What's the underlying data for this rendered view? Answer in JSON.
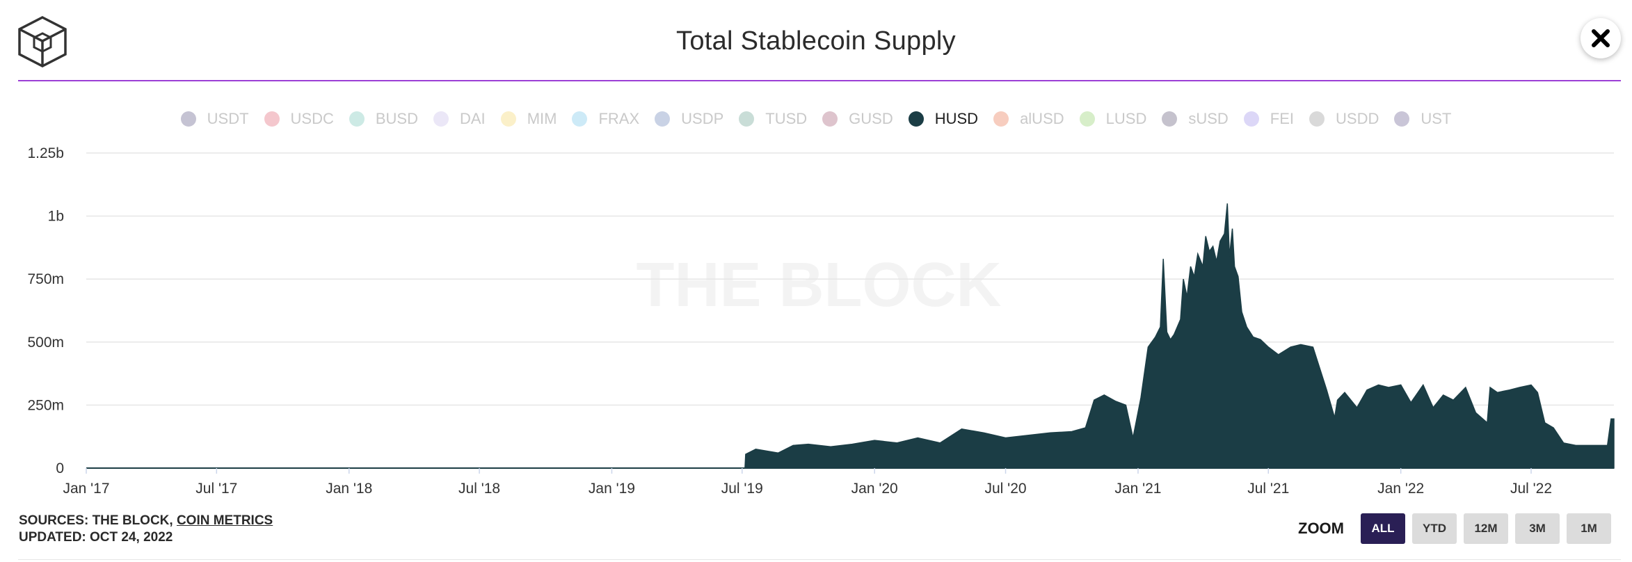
{
  "title": "Total Stablecoin Supply",
  "legend": [
    {
      "name": "USDT",
      "color": "#c5c3d3",
      "active": false
    },
    {
      "name": "USDC",
      "color": "#f4c7cd",
      "active": false
    },
    {
      "name": "BUSD",
      "color": "#cdeae5",
      "active": false
    },
    {
      "name": "DAI",
      "color": "#ebe7f7",
      "active": false
    },
    {
      "name": "MIM",
      "color": "#fbf0c9",
      "active": false
    },
    {
      "name": "FRAX",
      "color": "#cdeaf7",
      "active": false
    },
    {
      "name": "USDP",
      "color": "#c9d2e5",
      "active": false
    },
    {
      "name": "TUSD",
      "color": "#c9ddd7",
      "active": false
    },
    {
      "name": "GUSD",
      "color": "#dec4cd",
      "active": false
    },
    {
      "name": "HUSD",
      "color": "#1b3d45",
      "active": true
    },
    {
      "name": "alUSD",
      "color": "#f7cdbf",
      "active": false
    },
    {
      "name": "LUSD",
      "color": "#d7eec9",
      "active": false
    },
    {
      "name": "sUSD",
      "color": "#c5c2cd",
      "active": false
    },
    {
      "name": "FEI",
      "color": "#dcd7f7",
      "active": false
    },
    {
      "name": "USDD",
      "color": "#d9d9d9",
      "active": false
    },
    {
      "name": "UST",
      "color": "#c9c5d7",
      "active": false
    }
  ],
  "watermark": "THE BLOCK",
  "chart_data": {
    "type": "area",
    "series": [
      {
        "name": "HUSD",
        "color": "#1b3d45",
        "x": [
          "2017-01-01",
          "2019-07-05",
          "2019-07-06",
          "2019-07-20",
          "2019-08-20",
          "2019-09-10",
          "2019-10-01",
          "2019-11-01",
          "2019-12-01",
          "2020-01-01",
          "2020-02-01",
          "2020-03-01",
          "2020-04-01",
          "2020-05-01",
          "2020-06-01",
          "2020-07-01",
          "2020-08-01",
          "2020-09-01",
          "2020-10-01",
          "2020-10-20",
          "2020-11-01",
          "2020-11-15",
          "2020-12-01",
          "2020-12-15",
          "2020-12-25",
          "2021-01-05",
          "2021-01-15",
          "2021-01-25",
          "2021-02-01",
          "2021-02-05",
          "2021-02-10",
          "2021-02-15",
          "2021-02-20",
          "2021-03-01",
          "2021-03-05",
          "2021-03-10",
          "2021-03-15",
          "2021-03-20",
          "2021-03-25",
          "2021-04-01",
          "2021-04-05",
          "2021-04-10",
          "2021-04-15",
          "2021-04-20",
          "2021-04-25",
          "2021-05-01",
          "2021-05-05",
          "2021-05-08",
          "2021-05-12",
          "2021-05-15",
          "2021-05-20",
          "2021-05-25",
          "2021-06-01",
          "2021-06-10",
          "2021-06-20",
          "2021-07-01",
          "2021-07-15",
          "2021-08-01",
          "2021-08-15",
          "2021-09-01",
          "2021-09-20",
          "2021-10-01",
          "2021-10-05",
          "2021-10-15",
          "2021-11-01",
          "2021-11-15",
          "2021-12-01",
          "2021-12-15",
          "2022-01-01",
          "2022-01-15",
          "2022-02-01",
          "2022-02-15",
          "2022-03-01",
          "2022-03-15",
          "2022-04-01",
          "2022-04-15",
          "2022-05-01",
          "2022-05-05",
          "2022-05-15",
          "2022-06-01",
          "2022-06-15",
          "2022-07-01",
          "2022-07-10",
          "2022-07-20",
          "2022-08-01",
          "2022-08-15",
          "2022-09-01",
          "2022-09-15",
          "2022-10-01",
          "2022-10-15",
          "2022-10-20",
          "2022-10-24"
        ],
        "values": [
          0,
          0,
          55,
          75,
          60,
          90,
          95,
          85,
          95,
          110,
          100,
          120,
          100,
          155,
          140,
          120,
          130,
          140,
          145,
          160,
          270,
          290,
          265,
          250,
          120,
          280,
          480,
          520,
          560,
          830,
          540,
          510,
          530,
          590,
          750,
          680,
          800,
          760,
          850,
          800,
          920,
          860,
          880,
          820,
          900,
          930,
          1050,
          840,
          950,
          800,
          760,
          620,
          560,
          520,
          510,
          480,
          450,
          480,
          490,
          480,
          310,
          200,
          270,
          300,
          240,
          310,
          330,
          320,
          330,
          260,
          330,
          240,
          290,
          270,
          320,
          220,
          180,
          320,
          300,
          310,
          320,
          330,
          300,
          180,
          160,
          100,
          90,
          90,
          90,
          90,
          195,
          195
        ]
      }
    ],
    "xlabel": "",
    "ylabel": "",
    "ylim": [
      0,
      1250000000
    ],
    "yticks": [
      0,
      250,
      500,
      750,
      1000,
      1250
    ],
    "ytick_labels": [
      "0",
      "250m",
      "500m",
      "750m",
      "1b",
      "1.25b"
    ],
    "xtick_labels": [
      "Jan '17",
      "Jul '17",
      "Jan '18",
      "Jul '18",
      "Jan '19",
      "Jul '19",
      "Jan '20",
      "Jul '20",
      "Jan '21",
      "Jul '21",
      "Jan '22",
      "Jul '22"
    ],
    "xticks": [
      "2017-01-01",
      "2017-07-01",
      "2018-01-01",
      "2018-07-01",
      "2019-01-01",
      "2019-07-01",
      "2020-01-01",
      "2020-07-01",
      "2021-01-01",
      "2021-07-01",
      "2022-01-01",
      "2022-07-01"
    ],
    "xlim": [
      "2017-01-01",
      "2022-10-24"
    ],
    "value_unit": "millions USD",
    "grid": true,
    "legend_position": "top-center"
  },
  "footer": {
    "sources_prefix": "SOURCES: THE BLOCK, ",
    "sources_link": "COIN METRICS",
    "updated": "UPDATED: OCT 24, 2022"
  },
  "zoom": {
    "label": "ZOOM",
    "buttons": [
      {
        "label": "ALL",
        "active": true
      },
      {
        "label": "YTD",
        "active": false
      },
      {
        "label": "12M",
        "active": false
      },
      {
        "label": "3M",
        "active": false
      },
      {
        "label": "1M",
        "active": false
      }
    ]
  }
}
